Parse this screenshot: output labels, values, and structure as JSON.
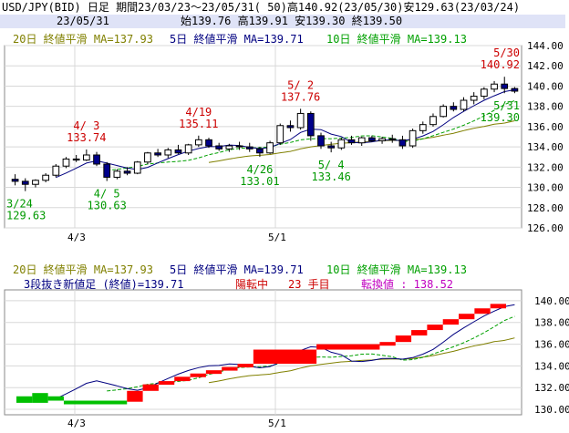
{
  "header": {
    "title": "USD/JPY(BID) 日足 期間23/03/23～23/05/31( 50)高140.92(23/05/30)安129.63(23/03/24)",
    "date": "23/05/31",
    "ohlc": "始139.76 高139.91 安139.30 終139.50"
  },
  "legend": {
    "ma20": "20日 終値平滑 MA=137.93",
    "ma5": "5日 終値平滑 MA=139.71",
    "ma10": "10日 終値平滑 MA=139.13"
  },
  "lower_info": {
    "label": "3段抜き新値足 (終値)=139.71",
    "state": "陽転中",
    "count": "23 手目",
    "reversal": "転換値 : 138.52"
  },
  "colors": {
    "up_candle": "#ffffff",
    "down_candle": "#00008b",
    "ma5": "#000080",
    "ma10": "#00a000",
    "ma20": "#808000",
    "annot_high": "#cc0000",
    "annot_low": "#009900",
    "brick_up": "#ff0000",
    "brick_down": "#00c000",
    "grid": "#d8d8d8"
  },
  "chart_data": [
    {
      "type": "candlestick",
      "ylim": [
        126,
        144
      ],
      "yticks": [
        "126.00",
        "128.00",
        "130.00",
        "132.00",
        "134.00",
        "136.00",
        "138.00",
        "140.00",
        "142.00",
        "144.00"
      ],
      "xticks": [
        "4/3",
        "5/1"
      ],
      "candles": [
        [
          130.8,
          131.3,
          130.2,
          130.6
        ],
        [
          130.6,
          130.9,
          129.63,
          130.3
        ],
        [
          130.3,
          130.8,
          130.0,
          130.7
        ],
        [
          130.7,
          131.4,
          130.5,
          131.2
        ],
        [
          131.2,
          132.3,
          131.0,
          132.1
        ],
        [
          132.1,
          133.0,
          131.9,
          132.8
        ],
        [
          132.8,
          133.2,
          132.5,
          132.7
        ],
        [
          132.7,
          133.74,
          132.6,
          133.2
        ],
        [
          133.2,
          133.5,
          132.1,
          132.3
        ],
        [
          132.3,
          132.5,
          130.63,
          131.0
        ],
        [
          131.0,
          131.8,
          130.8,
          131.6
        ],
        [
          131.6,
          132.0,
          131.2,
          131.4
        ],
        [
          131.4,
          132.6,
          131.3,
          132.5
        ],
        [
          132.5,
          133.5,
          132.3,
          133.4
        ],
        [
          133.4,
          133.8,
          133.0,
          133.2
        ],
        [
          133.2,
          133.9,
          132.9,
          133.7
        ],
        [
          133.7,
          134.2,
          133.3,
          133.4
        ],
        [
          133.4,
          134.3,
          133.2,
          134.2
        ],
        [
          134.2,
          135.11,
          134.0,
          134.7
        ],
        [
          134.7,
          134.9,
          133.9,
          134.1
        ],
        [
          134.1,
          134.4,
          133.6,
          133.8
        ],
        [
          133.8,
          134.3,
          133.5,
          134.1
        ],
        [
          134.1,
          134.5,
          133.7,
          134.0
        ],
        [
          134.0,
          134.4,
          133.5,
          133.8
        ],
        [
          133.8,
          134.0,
          133.01,
          133.4
        ],
        [
          133.4,
          134.6,
          133.3,
          134.4
        ],
        [
          134.4,
          136.3,
          134.2,
          136.1
        ],
        [
          136.1,
          136.6,
          135.5,
          135.9
        ],
        [
          135.9,
          137.76,
          135.7,
          137.3
        ],
        [
          137.3,
          137.5,
          134.6,
          135.1
        ],
        [
          135.1,
          135.4,
          133.8,
          134.1
        ],
        [
          134.1,
          134.5,
          133.46,
          133.9
        ],
        [
          133.9,
          134.9,
          133.7,
          134.7
        ],
        [
          134.7,
          135.1,
          134.2,
          134.4
        ],
        [
          134.4,
          135.0,
          134.1,
          134.9
        ],
        [
          134.9,
          135.1,
          134.5,
          134.6
        ],
        [
          134.6,
          135.0,
          134.3,
          134.8
        ],
        [
          134.8,
          135.2,
          134.4,
          134.7
        ],
        [
          134.7,
          135.1,
          133.8,
          134.1
        ],
        [
          134.1,
          135.8,
          133.9,
          135.6
        ],
        [
          135.6,
          136.5,
          135.3,
          136.2
        ],
        [
          136.2,
          137.3,
          136.0,
          137.0
        ],
        [
          137.0,
          138.2,
          136.9,
          138.0
        ],
        [
          138.0,
          138.4,
          137.5,
          137.7
        ],
        [
          137.7,
          138.9,
          137.5,
          138.6
        ],
        [
          138.6,
          139.4,
          138.2,
          139.0
        ],
        [
          139.0,
          139.9,
          138.7,
          139.7
        ],
        [
          139.7,
          140.5,
          139.4,
          140.2
        ],
        [
          140.2,
          140.92,
          139.3,
          139.76
        ],
        [
          139.76,
          139.91,
          139.3,
          139.5
        ]
      ],
      "annotations": [
        {
          "date": "4/ 3",
          "value": "133.74",
          "index": 7,
          "kind": "high"
        },
        {
          "date": "4/19",
          "value": "135.11",
          "index": 18,
          "kind": "high"
        },
        {
          "date": "5/ 2",
          "value": "137.76",
          "index": 28,
          "kind": "high"
        },
        {
          "date": "5/30",
          "value": "140.92",
          "index": 48,
          "kind": "high"
        },
        {
          "date": "3/24",
          "value": "129.63",
          "index": 1,
          "kind": "low"
        },
        {
          "date": "4/ 5",
          "value": "130.63",
          "index": 9,
          "kind": "low"
        },
        {
          "date": "4/26",
          "value": "133.01",
          "index": 24,
          "kind": "low"
        },
        {
          "date": "5/ 4",
          "value": "133.46",
          "index": 31,
          "kind": "low"
        },
        {
          "date": "5/31",
          "value": "139.30",
          "index": 49,
          "kind": "low"
        }
      ]
    },
    {
      "type": "line_break",
      "ylim": [
        129.5,
        141
      ],
      "yticks": [
        "130.00",
        "132.00",
        "134.00",
        "136.00",
        "138.00",
        "140.00"
      ],
      "xticks": [
        "4/3",
        "5/1"
      ],
      "bricks": [
        [
          131.2,
          130.6,
          "down"
        ],
        [
          131.5,
          130.6,
          "down"
        ],
        [
          131.2,
          130.8,
          "down"
        ],
        [
          130.8,
          130.7,
          "down"
        ],
        [
          130.7,
          131.7,
          "up"
        ],
        [
          131.7,
          132.3,
          "up"
        ],
        [
          132.3,
          132.6,
          "up"
        ],
        [
          132.6,
          133.0,
          "up"
        ],
        [
          133.0,
          133.3,
          "up"
        ],
        [
          133.3,
          133.6,
          "up"
        ],
        [
          133.6,
          133.9,
          "up"
        ],
        [
          133.9,
          134.2,
          "up"
        ],
        [
          134.2,
          135.5,
          "up"
        ],
        [
          135.5,
          136.0,
          "up"
        ],
        [
          136.0,
          136.2,
          "up"
        ],
        [
          136.2,
          136.8,
          "up"
        ],
        [
          136.8,
          137.3,
          "up"
        ],
        [
          137.3,
          137.8,
          "up"
        ],
        [
          137.8,
          138.3,
          "up"
        ],
        [
          138.3,
          138.8,
          "up"
        ],
        [
          138.8,
          139.3,
          "up"
        ],
        [
          139.3,
          139.71,
          "up"
        ]
      ]
    }
  ]
}
